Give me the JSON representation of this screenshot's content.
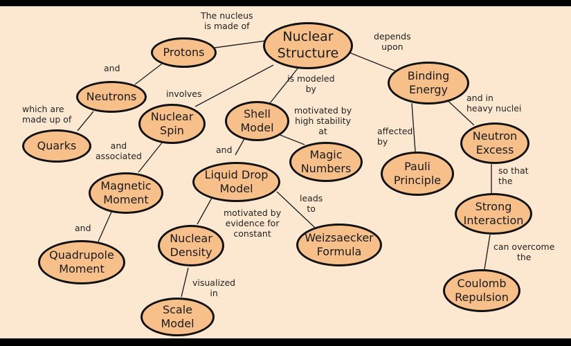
{
  "nodes": {
    "nuclear_structure": "Nuclear\nStructure",
    "protons": "Protons",
    "neutrons": "Neutrons",
    "quarks": "Quarks",
    "nuclear_spin": "Nuclear\nSpin",
    "magnetic_moment": "Magnetic\nMoment",
    "quadrupole_moment": "Quadrupole\nMoment",
    "shell_model": "Shell\nModel",
    "magic_numbers": "Magic\nNumbers",
    "liquid_drop_model": "Liquid Drop\nModel",
    "nuclear_density": "Nuclear\nDensity",
    "scale_model": "Scale\nModel",
    "weizsaecker_formula": "Weizsaecker\nFormula",
    "binding_energy": "Binding\nEnergy",
    "pauli_principle": "Pauli\nPrinciple",
    "neutron_excess": "Neutron\nExcess",
    "strong_interaction": "Strong\nInteraction",
    "coulomb_repulsion": "Coulomb\nRepulsion"
  },
  "labels": {
    "nucleus_made_of": "The nucleus\nis made of",
    "and_protons_neutrons": "and",
    "which_are_made_up_of": "which are\nmade up of",
    "involves": "involves",
    "is_modeled_by": "is modeled\nby",
    "motivated_by_stability": "motivated by\nhigh stability\nat",
    "and_spin_moment": "and\nassociated",
    "and_shell_drop": "and",
    "and_quadrupole": "and",
    "motivated_by_evidence": "motivated by\nevidence for\nconstant",
    "leads_to": "leads\nto",
    "visualized_in": "visualized\nin",
    "depends_upon": "depends\nupon",
    "affected_by": "affected\nby",
    "and_in_heavy_nuclei": "and in\nheavy nuclei",
    "so_that_the": "so that\nthe",
    "can_overcome_the": "can overcome\nthe"
  },
  "colors": {
    "node_fill": "#f7bf8a",
    "background": "#fce8d0",
    "border": "#111111"
  }
}
